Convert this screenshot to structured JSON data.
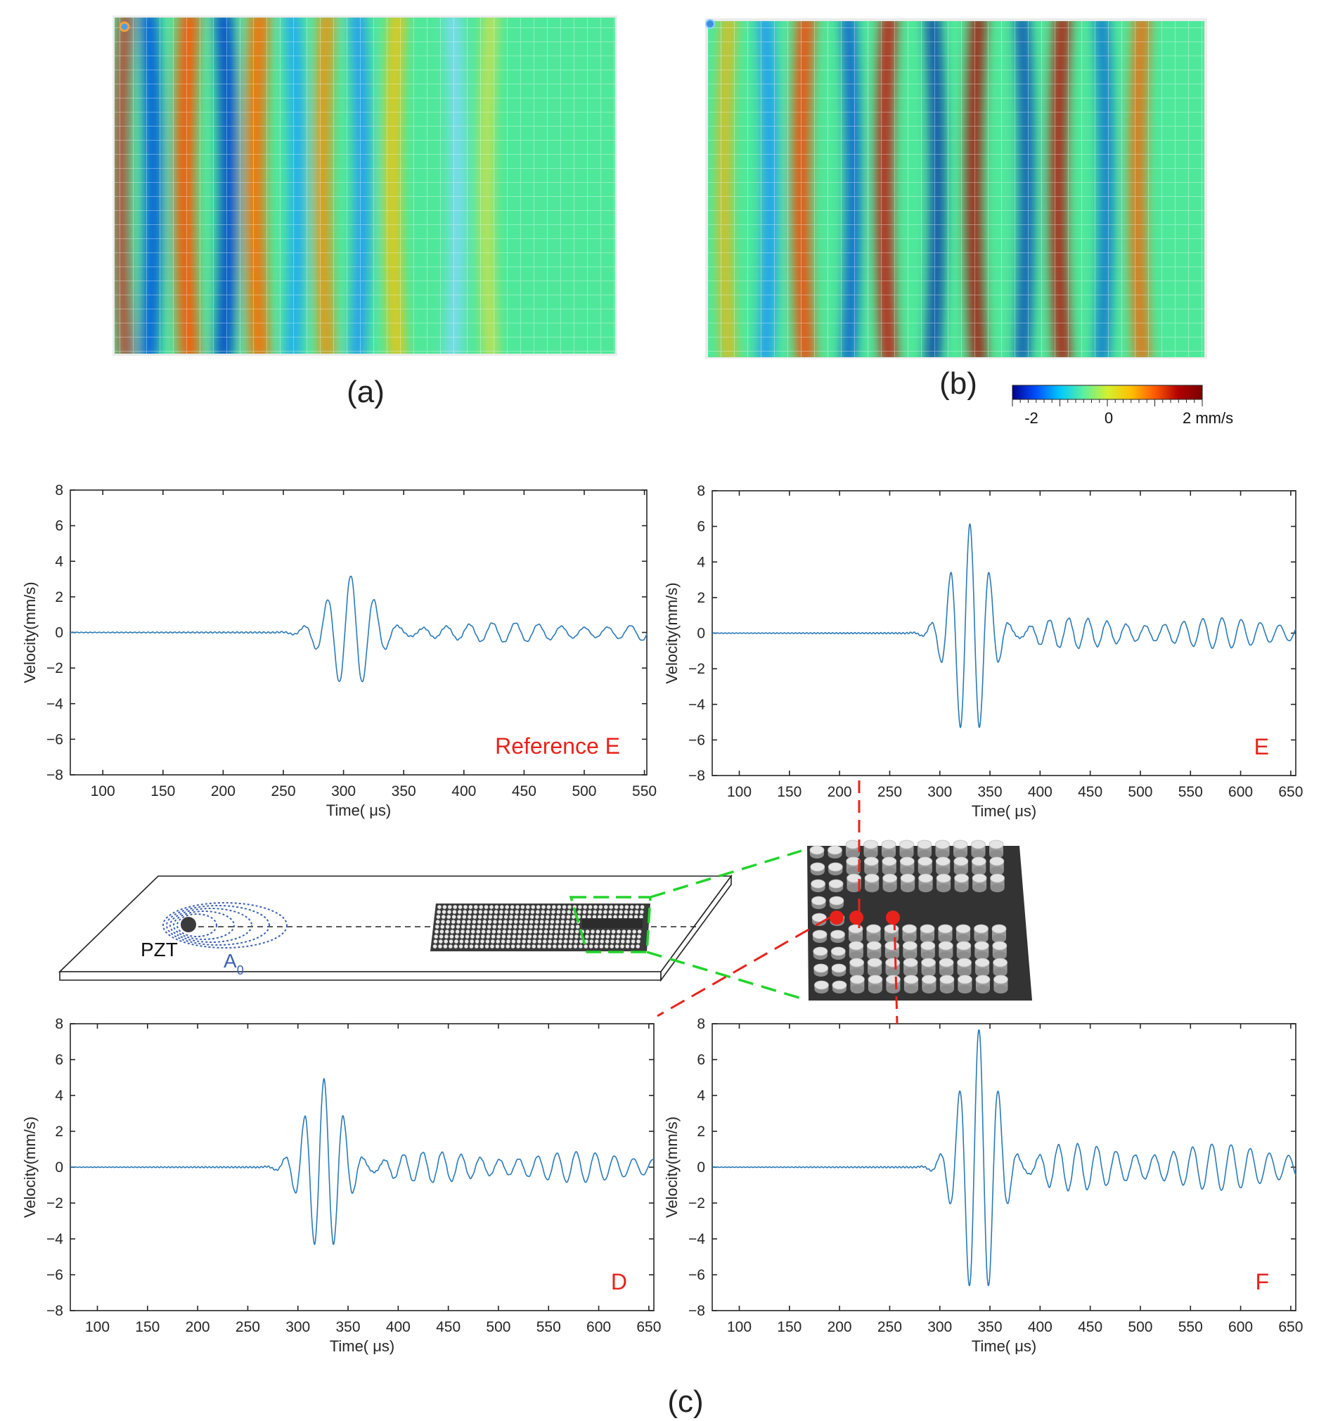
{
  "colors": {
    "trace": "#2a7ab9",
    "chart_label": "#e8221a",
    "axis": "#262626",
    "wave_label": "#3a60b5",
    "dashed_red": "#e8221a",
    "dashed_green": "#22d42a"
  },
  "captions": {
    "a": "(a)",
    "b": "(b)",
    "c": "(c)"
  },
  "colorbar": {
    "label_min": "-2",
    "label_mid": "0",
    "label_max": "2 mm/s",
    "colors": [
      "#00008f",
      "#0050ff",
      "#00c8ff",
      "#5cf0a0",
      "#d2f030",
      "#ffc000",
      "#ff5a00",
      "#b00000",
      "#7a0000"
    ]
  },
  "heatmaps": {
    "a": {
      "bands": [
        {
          "x": 0.01,
          "w": 0.025,
          "c": "#d02020"
        },
        {
          "x": 0.05,
          "w": 0.035,
          "c": "#0050e0"
        },
        {
          "x": 0.13,
          "w": 0.04,
          "c": "#ff5000"
        },
        {
          "x": 0.2,
          "w": 0.035,
          "c": "#003cd0"
        },
        {
          "x": 0.27,
          "w": 0.04,
          "c": "#ff6a00"
        },
        {
          "x": 0.34,
          "w": 0.03,
          "c": "#20a0ff"
        },
        {
          "x": 0.41,
          "w": 0.03,
          "c": "#ff8800"
        },
        {
          "x": 0.47,
          "w": 0.03,
          "c": "#2090ff"
        },
        {
          "x": 0.55,
          "w": 0.03,
          "c": "#ffc000"
        },
        {
          "x": 0.66,
          "w": 0.03,
          "c": "#80d8ff"
        },
        {
          "x": 0.74,
          "w": 0.025,
          "c": "#e0e040"
        }
      ]
    },
    "b": {
      "bands": [
        {
          "x": 0.03,
          "w": 0.025,
          "c": "#ffb000"
        },
        {
          "x": 0.1,
          "w": 0.03,
          "c": "#2090ff"
        },
        {
          "x": 0.18,
          "w": 0.035,
          "c": "#ff4000"
        },
        {
          "x": 0.27,
          "w": 0.025,
          "c": "#0040e0"
        },
        {
          "x": 0.35,
          "w": 0.03,
          "c": "#d00000"
        },
        {
          "x": 0.44,
          "w": 0.025,
          "c": "#0020b0"
        },
        {
          "x": 0.53,
          "w": 0.03,
          "c": "#b00000"
        },
        {
          "x": 0.62,
          "w": 0.025,
          "c": "#0030c0"
        },
        {
          "x": 0.7,
          "w": 0.03,
          "c": "#c00000"
        },
        {
          "x": 0.78,
          "w": 0.025,
          "c": "#0060e0"
        },
        {
          "x": 0.86,
          "w": 0.03,
          "c": "#ff6000"
        }
      ]
    }
  },
  "schematic": {
    "pzt_label": "PZT",
    "wave_label": "A",
    "wave_subscript": "0"
  },
  "chart_data": [
    {
      "id": "ref-e",
      "type": "line",
      "label": "Reference E",
      "xlabel": "Time( μs)",
      "ylabel": "Velocity(mm/s)",
      "xlim": [
        73,
        552
      ],
      "ylim": [
        -8,
        8
      ],
      "xticks": [
        100,
        150,
        200,
        250,
        300,
        350,
        400,
        450,
        500,
        550
      ],
      "yticks": [
        -8,
        -6,
        -4,
        -2,
        0,
        2,
        4,
        6,
        8
      ],
      "signal": {
        "packet": {
          "amp": 3.2,
          "center": 306,
          "width": 26
        },
        "tail": {
          "amp": 0.55,
          "start": 340,
          "end": 552
        },
        "period": 19.5,
        "pre": 0.04
      }
    },
    {
      "id": "e",
      "type": "line",
      "label": "E",
      "xlabel": "Time( μs)",
      "ylabel": "Velocity(mm/s)",
      "xlim": [
        73,
        655
      ],
      "ylim": [
        -8,
        8
      ],
      "xticks": [
        100,
        150,
        200,
        250,
        300,
        350,
        400,
        450,
        500,
        550,
        600,
        650
      ],
      "yticks": [
        -8,
        -6,
        -4,
        -2,
        0,
        2,
        4,
        6,
        8
      ],
      "signal": {
        "packet": {
          "amp": 6.1,
          "center": 330,
          "width": 25
        },
        "tail": {
          "amp": 0.85,
          "start": 370,
          "end": 655
        },
        "period": 19.5,
        "pre": 0.04
      }
    },
    {
      "id": "d",
      "type": "line",
      "label": "D",
      "xlabel": "Time( μs)",
      "ylabel": "Velocity(mm/s)",
      "xlim": [
        73,
        655
      ],
      "ylim": [
        -8,
        8
      ],
      "xticks": [
        100,
        150,
        200,
        250,
        300,
        350,
        400,
        450,
        500,
        550,
        600,
        650
      ],
      "yticks": [
        -8,
        -6,
        -4,
        -2,
        0,
        2,
        4,
        6,
        8
      ],
      "signal": {
        "packet": {
          "amp": 4.9,
          "center": 326,
          "width": 26
        },
        "tail": {
          "amp": 0.85,
          "start": 365,
          "end": 655
        },
        "period": 19.5,
        "pre": 0.04
      }
    },
    {
      "id": "f",
      "type": "line",
      "label": "F",
      "xlabel": "Time( μs)",
      "ylabel": "Velocity(mm/s)",
      "xlim": [
        73,
        655
      ],
      "ylim": [
        -8,
        8
      ],
      "xticks": [
        100,
        150,
        200,
        250,
        300,
        350,
        400,
        450,
        500,
        550,
        600,
        650
      ],
      "yticks": [
        -8,
        -6,
        -4,
        -2,
        0,
        2,
        4,
        6,
        8
      ],
      "signal": {
        "packet": {
          "amp": 7.7,
          "center": 339,
          "width": 25
        },
        "tail": {
          "amp": 1.3,
          "start": 380,
          "end": 655
        },
        "period": 19.5,
        "pre": 0.04
      }
    }
  ]
}
